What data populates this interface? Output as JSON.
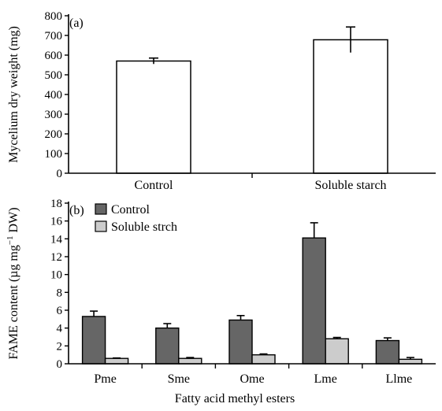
{
  "colors": {
    "control_a": "#ffffff",
    "control_b": "#666666",
    "starch_b": "#cccccc",
    "axis": "#000000"
  },
  "chart_data": [
    {
      "type": "bar",
      "panel_label": "(a)",
      "categories": [
        "Control",
        "Soluble starch"
      ],
      "values": [
        570,
        678
      ],
      "errors": [
        15,
        65
      ],
      "ylabel": "Mycelium dry weight (mg)",
      "ylim": [
        0,
        800
      ],
      "yticks": [
        0,
        100,
        200,
        300,
        400,
        500,
        600,
        700,
        800
      ],
      "grid": false
    },
    {
      "type": "bar",
      "panel_label": "(b)",
      "categories": [
        "Pme",
        "Sme",
        "Ome",
        "Lme",
        "Llme"
      ],
      "series": [
        {
          "name": "Control",
          "values": [
            5.3,
            4.0,
            4.9,
            14.1,
            2.6
          ],
          "errors": [
            0.6,
            0.5,
            0.5,
            1.7,
            0.3
          ]
        },
        {
          "name": "Soluble strch",
          "values": [
            0.6,
            0.6,
            1.0,
            2.8,
            0.5
          ],
          "errors": [
            0.05,
            0.1,
            0.1,
            0.15,
            0.2
          ]
        }
      ],
      "ylabel_main": "FAME content (µg mg",
      "ylabel_sup": "−1",
      "ylabel_tail": " DW)",
      "xlabel": "Fatty acid methyl esters",
      "ylim": [
        0,
        18
      ],
      "yticks": [
        0,
        2,
        4,
        6,
        8,
        10,
        12,
        14,
        16,
        18
      ],
      "legend_position": "top-left",
      "grid": false
    }
  ]
}
